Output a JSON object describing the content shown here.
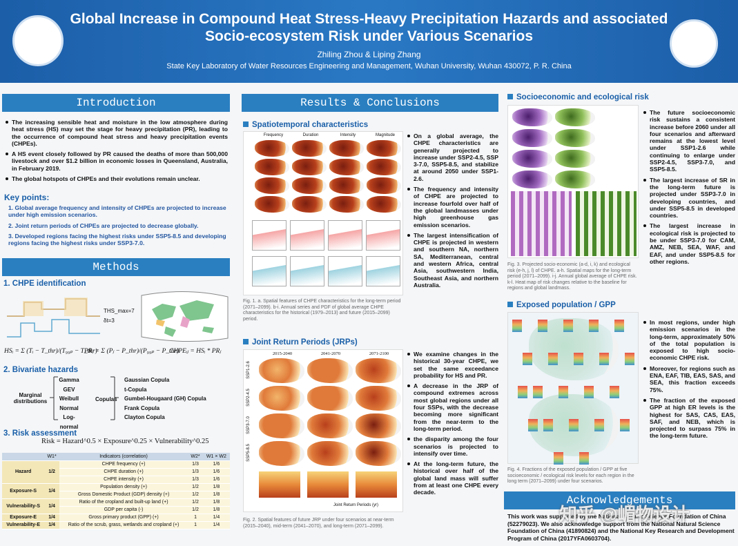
{
  "header": {
    "title_line1": "Global Increase in Compound Heat Stress-Heavy Precipitation Hazards and associated",
    "title_line2": "Socio-ecosystem Risk under Various Scenarios",
    "authors": "Zhiling Zhou & Liping Zhang",
    "affiliation": "State Key Laboratory of Water Resources Engineering and Management, Wuhan University, Wuhan 430072, P. R. China"
  },
  "introduction": {
    "heading": "Introduction",
    "bullets": [
      "The increasing sensible heat and moisture in the low atmosphere during heat stress (HS) may set the stage for heavy precipitation (PR), leading to the occurrence of compound heat stress and heavy precipitation events (CHPEs).",
      "A HS event closely followed by PR caused the deaths of more than 500,000 livestock and over $1.2 billion in economic losses in Queensland, Australia, in February 2019.",
      "The global hotspots of CHPEs and their evolutions remain unclear."
    ],
    "key_points_heading": "Key points:",
    "key_points": [
      "1. Global average frequency and intensity of CHPEs are projected to increase under high emission scenarios.",
      "2. Joint return periods of CHPEs are projected to decrease globally.",
      "3. Developed regions facing the highest risks under SSP5-8.5 and developing regions facing the highest risks under SSP3-7.0."
    ]
  },
  "methods": {
    "heading": "Methods",
    "chpe_heading": "1. CHPE identification",
    "chpe_labels": [
      "THS_max=7",
      "δt=3"
    ],
    "formulas": [
      "HSᵢ = Σ (Tᵢ − T_thr)/(T₉₉ₚ − T_thr)",
      "PRⱼ = Σ (Pⱼ − P_thr)/(P₉₉ₚ − P_thr)",
      "CHPEᵢⱼ = HSᵢ * PRⱼ"
    ],
    "bivariate_heading": "2. Bivariate hazards",
    "marginal_label": "Marginal distributions",
    "marginal": [
      "Gamma",
      "GEV",
      "Weibull",
      "Normal",
      "Log-normal"
    ],
    "copulas_label": "Copulas",
    "copulas": [
      "Gaussian Copula",
      "t-Copula",
      "Gumbel-Hougaard (GH) Copula",
      "Frank Copula",
      "Clayton Copula"
    ],
    "risk_heading": "3. Risk assessment",
    "risk_formula": "Risk = Hazard^0.5 × Exposure^0.25 × Vulnerability^0.25",
    "table": {
      "columns": [
        "W1*",
        "Indicators (correlation)",
        "W2*",
        "W1 × W2"
      ],
      "groups": [
        {
          "group": "Hazard",
          "w1": "1/2",
          "items": [
            [
              "CHPE frequency (+)",
              "1/3",
              "1/6"
            ],
            [
              "CHPE duration (+)",
              "1/3",
              "1/6"
            ],
            [
              "CHPE intensity (+)",
              "1/3",
              "1/6"
            ]
          ]
        },
        {
          "group": "Exposure-S",
          "w1": "1/4",
          "items": [
            [
              "Population density (+)",
              "1/2",
              "1/8"
            ],
            [
              "Gross Domestic Product (GDP) density (+)",
              "1/2",
              "1/8"
            ]
          ]
        },
        {
          "group": "Vulnerability-S",
          "w1": "1/4",
          "items": [
            [
              "Ratio of the cropland and built-up land (+)",
              "1/2",
              "1/8"
            ],
            [
              "GDP per capita (-)",
              "1/2",
              "1/8"
            ]
          ]
        },
        {
          "group": "Exposure-E",
          "w1": "1/4",
          "items": [
            [
              "Gross primary product (GPP) (+)",
              "1",
              "1/4"
            ]
          ]
        },
        {
          "group": "Vulnerability-E",
          "w1": "1/4",
          "items": [
            [
              "Ratio of the scrub, grass, wetlands and cropland (+)",
              "1",
              "1/4"
            ]
          ]
        }
      ]
    }
  },
  "results": {
    "heading": "Results & Conclusions",
    "spatio_heading": "Spatiotemporal characteristics",
    "fig1_columns": [
      "Frequency",
      "Duration",
      "Intensity",
      "Magnitude"
    ],
    "spatio_bullets": [
      "On a global average, the CHPE characteristics are generally projected to increase under SSP2-4.5, SSP 3-7.0, SSP5-8.5, and stabilize at around 2050 under SSP1-2.6.",
      "The frequency and intensity of CHPE are projected to increase fourfold over half of the global landmasses under high greenhouse gas emission scenarios.",
      "The largest intensification of CHPE is projected in western and southern NA, northern SA, Mediterranean, central and western Africa, central Asia, southwestern India, Southeast Asia, and northern Australia."
    ],
    "fig1_caption": "Fig. 1. a. Spatial features of CHPE characteristics for the long-term period (2071–2099). b-i. Annual series and PDF of global average CHPE characteristics for the historical (1979–2013) and future (2015–2099) period.",
    "jrp_heading": "Joint Return Periods (JRPs)",
    "fig2_columns": [
      "2015-2040",
      "2041-2070",
      "2071-2100"
    ],
    "fig2_rows": [
      "SSP1-2.6",
      "SSP2-4.5",
      "SSP3-7.0",
      "SSP5-8.5"
    ],
    "fig2_legend": "Joint Return Periods (yr)",
    "jrp_bullets": [
      "We examine changes in the historical 30-year CHPE, we set the same exceedance probability for HS and PR.",
      "A decrease in the JRP of compound extremes across most global regions under all four SSPs, with the decrease becoming more significant from the near-term to the long-term period.",
      "the disparity among the four scenarios is projected to intensify over time.",
      "At the long-term future, the historical over half of the global land mass will suffer from at least one CHPE every decade."
    ],
    "fig2_caption": "Fig. 2. Spatial features of future JRP under four scenarios at near-term (2015–2040), mid-term (2041–2070), and long-term (2071–2099)."
  },
  "socio": {
    "heading": "Socioeconomic and ecological risk",
    "bullets": [
      "The future socioeconomic risk sustains a consistent increase before 2060 under all four scenarios and afterward remains at the lowest level under SSP1-2.6 while continuing to enlarge under SSP2-4.5, SSP3-7.0, and SSP5-8.5.",
      "The largest increase of SR in the long-term future is projected under SSP3-7.0 in developing countries, and under SSP5-8.5 in developed countries.",
      "The largest increase in ecological risk is projected to be under SSP3-7.0 for CAM, AMZ, NEB, SEA, WAF, and EAF, and under SSP5-8.5 for other regions."
    ],
    "fig3_caption": "Fig. 3. Projected socio-economic (a-d, i, k) and ecological risk (e-h, j, l) of CHPE. a-h. Spatial maps for the long-term period (2071–2099). i-j. Annual global average of CHPE risk. k-l. Heat map of risk changes relative to the baseline for regions and global landmass."
  },
  "exposed": {
    "heading": "Exposed population / GPP",
    "bullets": [
      "In most regions, under high emission scenarios in the long-term, approximately 50% of the total population is exposed to high socio-economic CHPE risk.",
      "Moreover, for regions such as ENA, EAF, TIB, EAS, SAS, and SEA, this fraction exceeds 75%.",
      "The fraction of the exposed GPP at high ER levels is the highest for SAS, CAS, EAS, SAF, and NEB, which is projected to surpass 75% in the long-term future."
    ],
    "fig4_caption": "Fig. 4. Fractions of the exposed population / GPP at five socioeconomic / ecological risk levels for each region in the long term (2071–2099) under four scenarios."
  },
  "acknowledgements": {
    "heading": "Acknowledgements",
    "text": "This work was supported by the National Natural Science Foundation of China (52279023). We also acknowledge support from the National Natural Science Foundation of China (41890824) and the National Key Research and Development Program of China (2017YFA0603704)."
  },
  "watermark": "知乎 @嵋物设计"
}
